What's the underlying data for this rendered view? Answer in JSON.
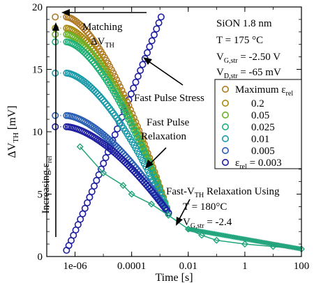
{
  "chart_data": {
    "type": "scatter",
    "xscale": "log",
    "xlim": [
      1e-07,
      100
    ],
    "ylim": [
      0,
      20
    ],
    "xlabel": "Time [s]",
    "ylabel": {
      "main": "ΔV",
      "sub": "TH",
      "unit": " [mV]"
    },
    "xticks": [
      {
        "value": 1e-06,
        "label": "1e-06"
      },
      {
        "value": 0.0001,
        "label": "0.0001"
      },
      {
        "value": 0.01,
        "label": "0.01"
      },
      {
        "value": 1,
        "label": "1"
      },
      {
        "value": 100,
        "label": "100"
      }
    ],
    "yticks": [
      0,
      5,
      10,
      15,
      20
    ],
    "info_box": [
      {
        "main": "SiON 1.8 nm",
        "sub": ""
      },
      {
        "main": "T = 175 °C",
        "sub": ""
      },
      {
        "main": "V",
        "sub": "G,str",
        "tail": " = -2.50 V"
      },
      {
        "main": "V",
        "sub": "D,str",
        "tail": " = -65 mV"
      }
    ],
    "legend": {
      "title": {
        "main": "Maximum ε",
        "sub": "rel"
      },
      "entries": [
        {
          "label": "0.2",
          "color": "#a88a10"
        },
        {
          "label": "0.05",
          "color": "#6ab22a"
        },
        {
          "label": "0.025",
          "color": "#1fb079"
        },
        {
          "label": "0.01",
          "color": "#1b9aa8"
        },
        {
          "label": "0.005",
          "color": "#2a5fb3"
        },
        {
          "label": "ε",
          "sub": "rel",
          "tail": " = 0.003",
          "color": "#1e1ea0"
        }
      ],
      "extra_color": "#b07a25"
    },
    "series": [
      {
        "relaxation": {
          "x0": 5e-07,
          "y0": 19.2,
          "x_end": 7e-07,
          "y_end": 17.2
        },
        "initial_y": 19.2,
        "level_y": 19.2
      },
      {
        "relaxation": {
          "x0": 5e-07,
          "y0": 18.3,
          "x_end": 8e-07,
          "y_end": 16.2
        },
        "initial_y": 18.3,
        "level_y": 18.3
      },
      {
        "relaxation": {
          "x0": 5e-07,
          "y0": 17.8,
          "x_end": 1e-06,
          "y_end": 15.5
        },
        "initial_y": 17.8,
        "level_y": 17.8
      },
      {
        "relaxation": {
          "x0": 5e-07,
          "y0": 17.2,
          "x_end": 1e-06,
          "y_end": 16.0
        },
        "initial_y": 17.2,
        "level_y": 17.2
      },
      {
        "relaxation": {
          "x0": 5e-07,
          "y0": 14.7,
          "x_end": 1e-06,
          "y_end": 14.5
        },
        "initial_y": 14.7,
        "level_y": 14.7
      },
      {
        "relaxation": {
          "x0": 5e-07,
          "y0": 11.3,
          "x_end": 1e-06,
          "y_end": 11.2
        },
        "initial_y": 11.3,
        "level_y": 11.3
      },
      {
        "relaxation": {
          "x0": 5e-07,
          "y0": 10.4,
          "x_end": 0.002,
          "y_end": 3.5
        },
        "initial_y": 10.4,
        "level_y": 10.4
      }
    ],
    "stress": {
      "x_start": 5e-07,
      "y_start": 0.5,
      "x_end": 0.0011,
      "y_end": 19.2
    },
    "fast_vth": [
      {
        "x": 1.5e-06,
        "y": 8.8
      },
      {
        "x": 1e-05,
        "y": 6.7
      },
      {
        "x": 5e-05,
        "y": 5.7
      },
      {
        "x": 0.0001,
        "y": 5.0
      },
      {
        "x": 0.0005,
        "y": 4.2
      },
      {
        "x": 0.002,
        "y": 3.3
      },
      {
        "x": 0.01,
        "y": 2.2
      },
      {
        "x": 0.03,
        "y": 1.7
      },
      {
        "x": 0.1,
        "y": 1.3
      },
      {
        "x": 1,
        "y": 1.0
      },
      {
        "x": 10,
        "y": 0.8
      },
      {
        "x": 100,
        "y": 0.6
      }
    ],
    "annotations": {
      "matching": {
        "line1": "Matching",
        "line2_main": "ΔV",
        "line2_sub": "TH"
      },
      "fast_pulse_stress": "Fast Pulse Stress",
      "fast_pulse_relax": [
        "Fast Pulse",
        "Relaxation"
      ],
      "increasing": {
        "main": "Increasing ε",
        "sub": "rel"
      },
      "fast_vth_relax": {
        "line1_main": "Fast-V",
        "line1_sub": "TH",
        "line1_tail": " Relaxation Using",
        "line2": "T = 180°C",
        "line3_main": "V",
        "line3_sub": "G,str",
        "line3_tail": " = -2.4"
      }
    },
    "fast_vth_color": "#1fa37a"
  }
}
